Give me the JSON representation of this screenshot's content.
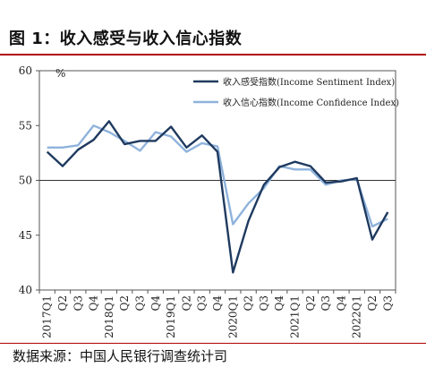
{
  "header": {
    "title": "图 1：收入感受与收入信心指数"
  },
  "footer": {
    "source": "数据来源：中国人民银行调查统计司"
  },
  "colors": {
    "accent_rule": "#b00000",
    "sentiment": "#1f3a5f",
    "confidence": "#8fb3dc"
  },
  "chart_data": {
    "type": "line",
    "title": "",
    "xlabel": "",
    "ylabel": "%",
    "ylim": [
      40,
      60
    ],
    "yticks": [
      40,
      45,
      50,
      55,
      60
    ],
    "baseline": 50,
    "legend_position": "top-right",
    "categories": [
      "2017Q1",
      "2017Q2",
      "2017Q3",
      "2017Q4",
      "2018Q1",
      "2018Q2",
      "2018Q3",
      "2018Q4",
      "2019Q1",
      "2019Q2",
      "2019Q3",
      "2019Q4",
      "2020Q1",
      "2020Q2",
      "2020Q3",
      "2020Q4",
      "2021Q1",
      "2021Q2",
      "2021Q3",
      "2021Q4",
      "2022Q1",
      "2022Q2",
      "2022Q3"
    ],
    "x_tick_labels": [
      "2017Q1",
      "Q2",
      "Q3",
      "Q4",
      "2018Q1",
      "Q2",
      "Q3",
      "Q4",
      "2019Q1",
      "Q2",
      "Q3",
      "Q4",
      "2020Q1",
      "Q2",
      "Q3",
      "Q4",
      "2021Q1",
      "Q2",
      "Q3",
      "Q4",
      "2022Q1",
      "Q2",
      "Q3"
    ],
    "series": [
      {
        "name": "收入感受指数(Income Sentiment Index)",
        "values": [
          52.6,
          51.3,
          52.8,
          53.7,
          55.4,
          53.3,
          53.6,
          53.6,
          54.9,
          53.0,
          54.1,
          52.6,
          41.6,
          46.3,
          49.6,
          51.2,
          51.7,
          51.3,
          49.8,
          49.9,
          50.2,
          44.6,
          47.1
        ]
      },
      {
        "name": "收入信心指数(Income Confidence Index)",
        "values": [
          53.0,
          53.0,
          53.2,
          55.0,
          54.4,
          53.6,
          52.7,
          54.4,
          54.0,
          52.6,
          53.4,
          53.1,
          46.0,
          47.9,
          49.3,
          51.3,
          51.0,
          51.0,
          49.6,
          50.0,
          50.1,
          45.8,
          46.5
        ]
      }
    ]
  }
}
